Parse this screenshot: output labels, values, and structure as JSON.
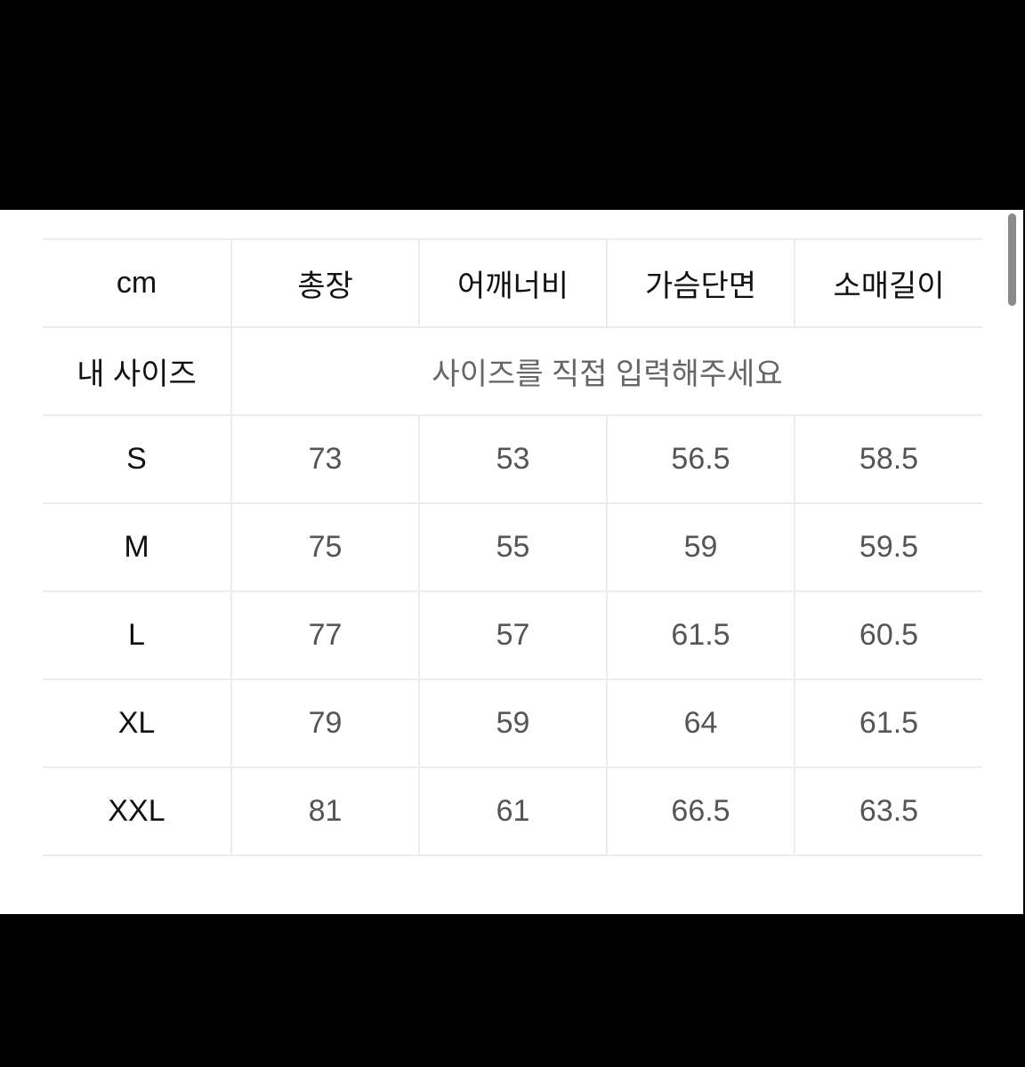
{
  "table": {
    "header": [
      "cm",
      "총장",
      "어깨너비",
      "가슴단면",
      "소매길이"
    ],
    "my_size": {
      "label": "내 사이즈",
      "placeholder": "사이즈를 직접 입력해주세요"
    },
    "rows": [
      {
        "size": "S",
        "values": [
          "73",
          "53",
          "56.5",
          "58.5"
        ]
      },
      {
        "size": "M",
        "values": [
          "75",
          "55",
          "59",
          "59.5"
        ]
      },
      {
        "size": "L",
        "values": [
          "77",
          "57",
          "61.5",
          "60.5"
        ]
      },
      {
        "size": "XL",
        "values": [
          "79",
          "59",
          "64",
          "61.5"
        ]
      },
      {
        "size": "XXL",
        "values": [
          "81",
          "61",
          "66.5",
          "63.5"
        ]
      }
    ]
  },
  "colors": {
    "border": "#ececec",
    "value_text": "#555555",
    "label_text": "#111111"
  }
}
